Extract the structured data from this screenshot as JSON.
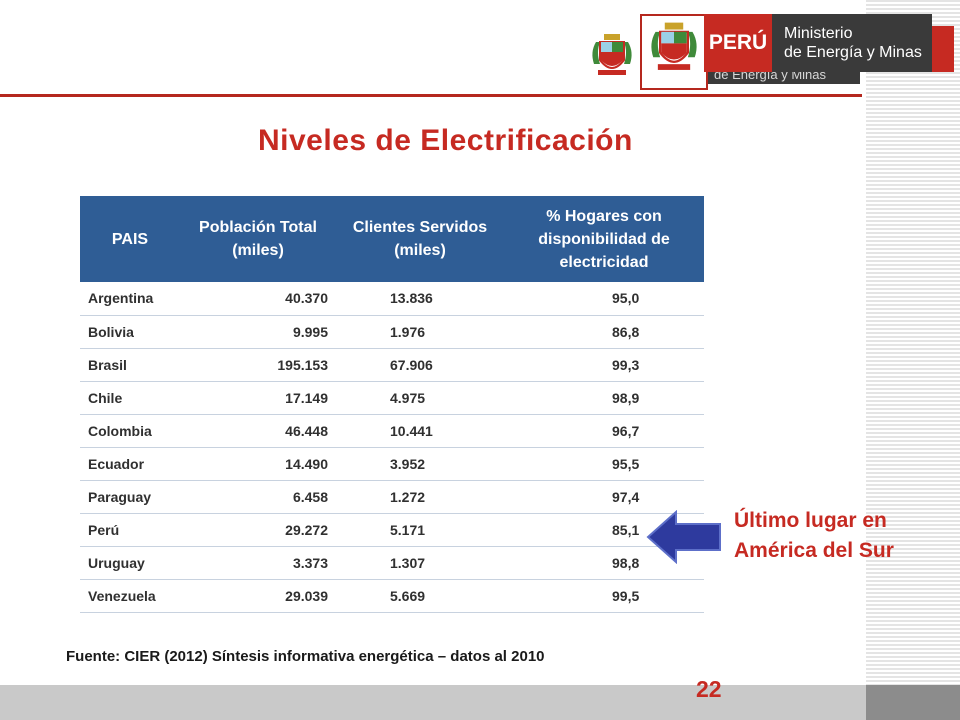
{
  "header": {
    "logo_peru": "PERÚ",
    "logo_ministry_line1": "Ministerio",
    "logo_ministry_line2": "de Energía y Minas",
    "logo_echo": "de Energía y Minas"
  },
  "title": "Niveles de Electrificación",
  "table": {
    "headers": [
      "PAIS",
      "Población Total (miles)",
      "Clientes Servidos (miles)",
      "% Hogares con disponibilidad de electricidad"
    ],
    "rows": [
      [
        "Argentina",
        "40.370",
        "13.836",
        "95,0"
      ],
      [
        "Bolivia",
        "9.995",
        "1.976",
        "86,8"
      ],
      [
        "Brasil",
        "195.153",
        "67.906",
        "99,3"
      ],
      [
        "Chile",
        "17.149",
        "4.975",
        "98,9"
      ],
      [
        "Colombia",
        "46.448",
        "10.441",
        "96,7"
      ],
      [
        "Ecuador",
        "14.490",
        "3.952",
        "95,5"
      ],
      [
        "Paraguay",
        "6.458",
        "1.272",
        "97,4"
      ],
      [
        "Perú",
        "29.272",
        "5.171",
        "85,1"
      ],
      [
        "Uruguay",
        "3.373",
        "1.307",
        "98,8"
      ],
      [
        "Venezuela",
        "29.039",
        "5.669",
        "99,5"
      ]
    ]
  },
  "annotation": {
    "line1": "Último lugar en",
    "line2": "América del Sur"
  },
  "source": "Fuente: CIER (2012) Síntesis informativa energética – datos al 2010",
  "page_number": "22",
  "colors": {
    "accent_red": "#c62a22",
    "header_blue": "#2f5d95",
    "arrow_blue": "#2e3a9e"
  },
  "icons": [
    "coat-of-arms-icon",
    "left-arrow-icon"
  ]
}
